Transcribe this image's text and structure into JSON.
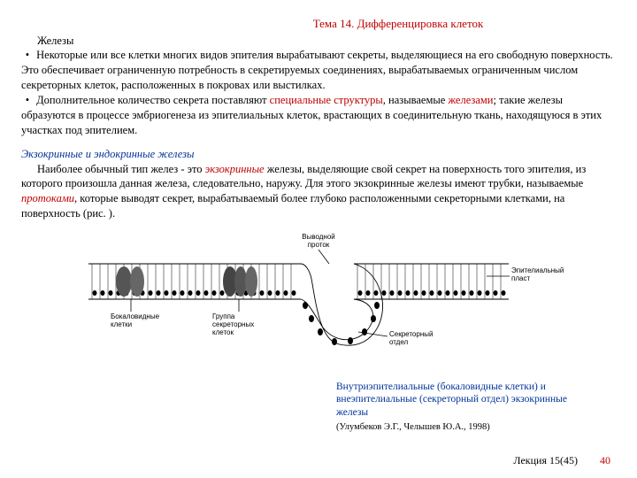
{
  "header": "Тема 14. Дифференцировка клеток",
  "glands_title": "Железы",
  "para1a": "Некоторые или все клетки многих видов эпителия вырабатывают секреты, выделяющиеся на его свободную поверхность. Это обеспечивает ограниченную потребность в секретируемых соединениях, вырабатываемых ограниченным числом секреторных клеток, расположенных в покровах или выстилках.",
  "para2a": "Дополнительное количество секрета поставляют ",
  "para2b": "специальные структуры",
  "para2c": ", называемые ",
  "para2d": "железами",
  "para2e": "; такие железы образуются в процессе эмбриогенеза из эпителиальных клеток, врастающих в соединительную ткань, находящуюся в этих участках под эпителием.",
  "section2_head": "Экзокринные и эндокринные железы",
  "p3a": "Наиболее обычный тип желез - это ",
  "p3b": "экзокринные",
  "p3c": " железы, выделяющие свой секрет на поверхность того эпителия, из которого произошла данная железа, следовательно, наружу. Для этого экзокринные железы имеют трубки, называемые ",
  "p3d": "протоками",
  "p3e": ", которые выводят секрет, вырабатываемый более глубоко расположенными секреторными клетками, на поверхность (рис. ).",
  "fig": {
    "labels": {
      "duct": "Выводной\nпроток",
      "layer": "Эпителиальный\nпласт",
      "goblet": "Бокаловидные\nклетки",
      "group": "Группа\nсекреторных\nклеток",
      "secretory": "Секреторный\nотдел"
    },
    "colors": {
      "stroke": "#000000",
      "bg": "#ffffff"
    }
  },
  "caption1": "Внутриэпителиальные (бокаловидные клетки) и внеэпителиальные (секреторный отдел) экзокринные железы",
  "caption2": "(Улумбеков Э.Г., Челышев Ю.А., 1998)",
  "footer_lecture": "Лекция 15(45)",
  "footer_page": "40"
}
